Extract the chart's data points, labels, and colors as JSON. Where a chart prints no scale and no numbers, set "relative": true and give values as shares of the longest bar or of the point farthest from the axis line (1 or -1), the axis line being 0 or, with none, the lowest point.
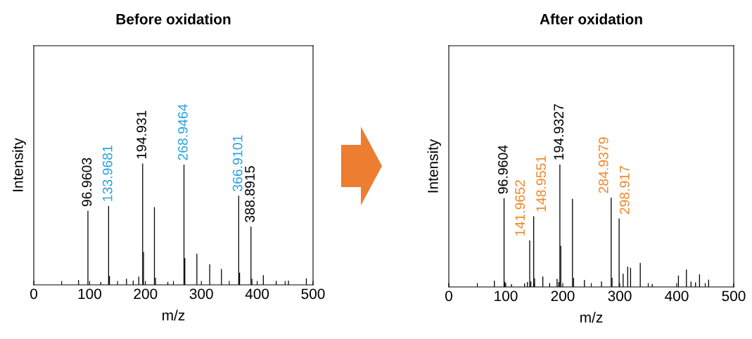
{
  "chart_data": [
    {
      "type": "bar",
      "title": "Before oxidation",
      "xlabel": "m/z",
      "ylabel": "Intensity",
      "relative": true,
      "tick_labels": "x",
      "xlim": [
        0,
        500
      ],
      "xticks": [
        0,
        {
          "value": 50,
          "label": null
        },
        100,
        {
          "value": 150,
          "label": null
        },
        200,
        {
          "value": 250,
          "label": null
        },
        300,
        {
          "value": 350,
          "label": null
        },
        400,
        {
          "value": 450,
          "label": null
        },
        500
      ],
      "series": [
        {
          "color": "#000000",
          "x": [
            80.2,
            96.9603,
            100.5,
            120,
            135.5,
            166,
            178,
            188,
            194.931,
            196.5,
            216,
            218,
            240,
            270.5,
            292,
            315,
            336,
            368.5,
            388.8915,
            390.5,
            411,
            434,
            456,
            488
          ],
          "values": [
            0.039,
            0.61,
            null,
            0.023,
            0.072,
            0.05,
            0.035,
            0.068,
            1.0,
            0.27,
            0.64,
            0.058,
            0.023,
            0.22,
            0.256,
            0.17,
            0.13,
            0.1,
            0.48,
            0.05,
            0.08,
            0.033,
            0.035,
            0.054
          ]
        },
        {
          "color": "#29a3e0",
          "colors": [
            "#000000",
            "#000000",
            "#000000"
          ],
          "x": [
            133.9681,
            268.9464,
            366.9101
          ],
          "values": [
            0.65,
            0.99,
            0.734
          ]
        }
      ],
      "annotations": [
        {
          "text": "96.9603",
          "x": 96.9603,
          "y": 0.61
        },
        {
          "text": "133.9681",
          "x": 133.9681,
          "y": 0.65
        },
        {
          "text": "194.931",
          "x": 194.931,
          "y": 1.0
        },
        {
          "text": "268.9464",
          "x": 268.9464,
          "y": 0.99
        },
        {
          "text": "366.9101",
          "x": 366.9101,
          "y": 0.734
        },
        {
          "text": "388.8915",
          "x": 388.8915,
          "y": 0.48
        }
      ]
    },
    {
      "type": "bar",
      "title": "After oxidation",
      "xlabel": "m/z",
      "ylabel": "Intensity",
      "relative": true,
      "tick_labels": "x",
      "xlim": [
        0,
        500
      ],
      "xticks": [
        0,
        {
          "value": 50,
          "label": null
        },
        100,
        {
          "value": 150,
          "label": null
        },
        200,
        {
          "value": 250,
          "label": null
        },
        300,
        {
          "value": 350,
          "label": null
        },
        400,
        {
          "value": 450,
          "label": null
        },
        500
      ],
      "series": [
        {
          "color": "#000000",
          "x": [
            80,
            96.9604,
            98.5,
            110,
            133,
            138,
            144,
            150.5,
            165,
            177,
            190,
            193,
            194.9327,
            196.5,
            217,
            219,
            238,
            268,
            286.5,
            301,
            306,
            314,
            319,
            336,
            357,
            403,
            417,
            425,
            433,
            440,
            456
          ],
          "values": [
            0.051,
            0.725,
            0.042,
            0.023,
            0.028,
            0.04,
            0.045,
            0.07,
            0.085,
            0.032,
            0.066,
            0.04,
            1.0,
            0.336,
            0.72,
            0.074,
            0.057,
            0.045,
            0.074,
            null,
            0.108,
            0.165,
            0.156,
            0.197,
            0.023,
            0.093,
            0.142,
            0.045,
            0.038,
            0.104,
            0.059
          ]
        },
        {
          "color": "#f0872a",
          "colors": [
            "#000000",
            "#000000",
            "#000000",
            "#000000"
          ],
          "x": [
            141.9652,
            148.9551,
            284.9379,
            298.917
          ],
          "values": [
            0.38,
            0.577,
            0.729,
            0.558
          ]
        }
      ],
      "annotations": [
        {
          "text": "96.9604",
          "x": 96.9604,
          "y": 0.725
        },
        {
          "text": "141.9652",
          "x": 141.9652,
          "y": 0.38
        },
        {
          "text": "148.9551",
          "x": 148.9551,
          "y": 0.577
        },
        {
          "text": "194.9327",
          "x": 194.9327,
          "y": 1.0
        },
        {
          "text": "284.9379",
          "x": 284.9379,
          "y": 0.729
        },
        {
          "text": "298.917",
          "x": 298.917,
          "y": 0.558
        }
      ]
    }
  ]
}
